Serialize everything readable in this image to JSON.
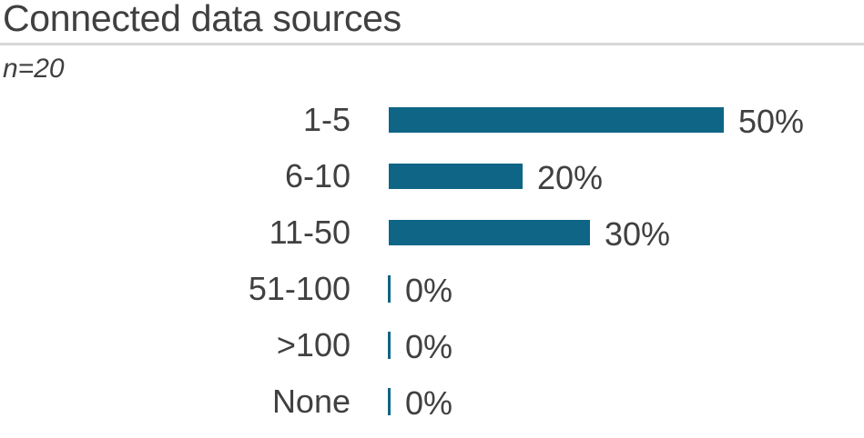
{
  "chart_data": {
    "type": "bar",
    "orientation": "horizontal",
    "title": "Connected data sources",
    "subtitle": "n=20",
    "categories": [
      "1-5",
      "6-10",
      "11-50",
      "51-100",
      ">100",
      "None"
    ],
    "values": [
      50,
      20,
      30,
      0,
      0,
      0
    ],
    "value_labels": [
      "50%",
      "20%",
      "30%",
      "0%",
      "0%",
      "0%"
    ],
    "unit": "%",
    "xlim": [
      0,
      50
    ],
    "grid": false,
    "legend": false,
    "bar_color": "#0e6585",
    "text_color": "#404040",
    "divider_color": "#d8d8d8"
  }
}
